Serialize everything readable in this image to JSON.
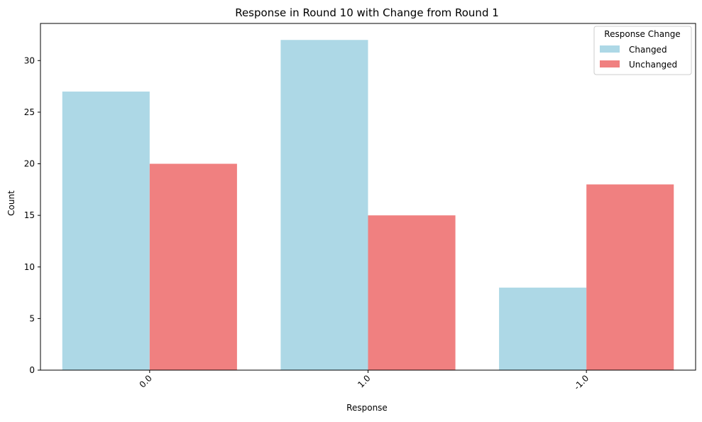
{
  "chart_data": {
    "type": "bar",
    "title": "Response in Round 10 with Change from Round 1",
    "xlabel": "Response",
    "ylabel": "Count",
    "categories": [
      "0.0",
      "1.0",
      "-1.0"
    ],
    "series": [
      {
        "name": "Changed",
        "values": [
          27,
          32,
          8
        ],
        "color": "#add8e6"
      },
      {
        "name": "Unchanged",
        "values": [
          20,
          15,
          18
        ],
        "color": "#f08080"
      }
    ],
    "ylim": [
      0,
      33.6
    ],
    "yticks": [
      0,
      5,
      10,
      15,
      20,
      25,
      30
    ],
    "xtick_rotation": 45,
    "grid": false,
    "legend": {
      "title": "Response Change",
      "placement": "top-right"
    }
  }
}
